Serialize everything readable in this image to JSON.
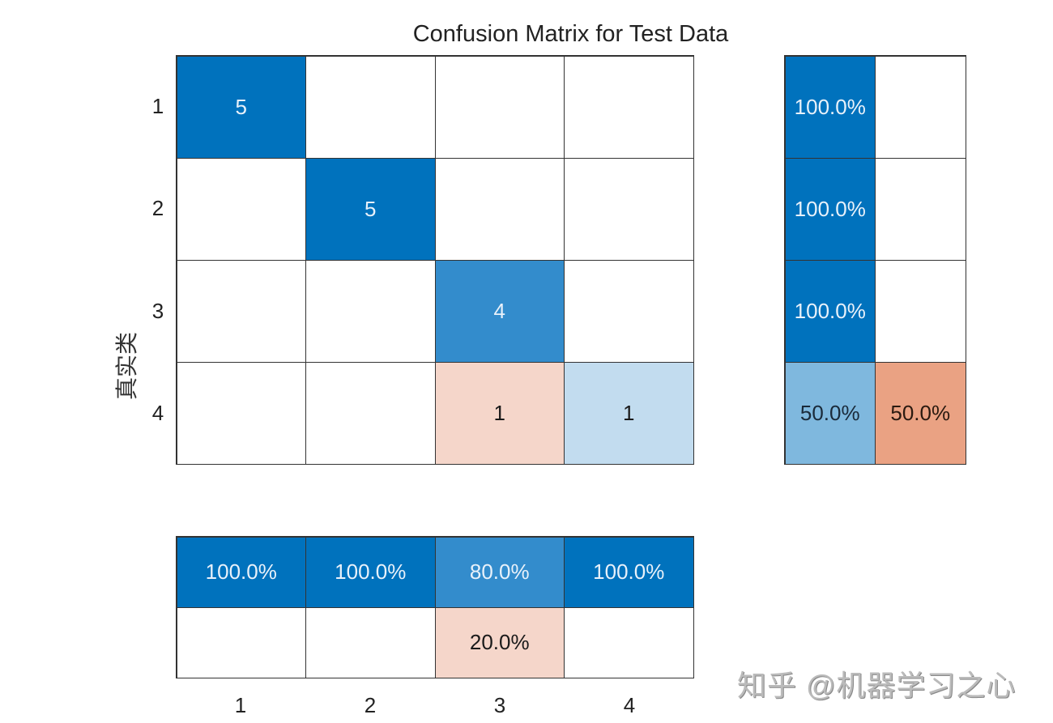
{
  "chart_data": {
    "type": "heatmap",
    "title": "Confusion Matrix for Test Data",
    "ylabel": "真实类",
    "xlabel": "",
    "row_labels": [
      "1",
      "2",
      "3",
      "4"
    ],
    "col_labels": [
      "1",
      "2",
      "3",
      "4"
    ],
    "matrix": [
      [
        5,
        0,
        0,
        0
      ],
      [
        0,
        5,
        0,
        0
      ],
      [
        0,
        0,
        4,
        0
      ],
      [
        0,
        0,
        1,
        1
      ]
    ],
    "row_summary": [
      [
        "100.0%",
        ""
      ],
      [
        "100.0%",
        ""
      ],
      [
        "100.0%",
        ""
      ],
      [
        "50.0%",
        "50.0%"
      ]
    ],
    "column_summary": [
      [
        "100.0%",
        "100.0%",
        "80.0%",
        "100.0%"
      ],
      [
        "",
        "",
        "20.0%",
        ""
      ]
    ]
  },
  "cells": {
    "main": [
      [
        {
          "t": "5",
          "bg": "#0072bd",
          "fg": "#e8f1fa"
        },
        {
          "t": "",
          "bg": "#ffffff",
          "fg": "#000"
        },
        {
          "t": "",
          "bg": "#ffffff",
          "fg": "#000"
        },
        {
          "t": "",
          "bg": "#ffffff",
          "fg": "#000"
        }
      ],
      [
        {
          "t": "",
          "bg": "#ffffff",
          "fg": "#000"
        },
        {
          "t": "5",
          "bg": "#0072bd",
          "fg": "#e8f1fa"
        },
        {
          "t": "",
          "bg": "#ffffff",
          "fg": "#000"
        },
        {
          "t": "",
          "bg": "#ffffff",
          "fg": "#000"
        }
      ],
      [
        {
          "t": "",
          "bg": "#ffffff",
          "fg": "#000"
        },
        {
          "t": "",
          "bg": "#ffffff",
          "fg": "#000"
        },
        {
          "t": "4",
          "bg": "#338ccc",
          "fg": "#e8f1fa"
        },
        {
          "t": "",
          "bg": "#ffffff",
          "fg": "#000"
        }
      ],
      [
        {
          "t": "",
          "bg": "#ffffff",
          "fg": "#000"
        },
        {
          "t": "",
          "bg": "#ffffff",
          "fg": "#000"
        },
        {
          "t": "1",
          "bg": "#f5d6ca",
          "fg": "#1a1a1a"
        },
        {
          "t": "1",
          "bg": "#c2dcef",
          "fg": "#1a1a1a"
        }
      ]
    ],
    "rsum": [
      [
        {
          "t": "100.0%",
          "bg": "#0072bd",
          "fg": "#e8f1fa"
        },
        {
          "t": "",
          "bg": "#ffffff",
          "fg": "#000"
        }
      ],
      [
        {
          "t": "100.0%",
          "bg": "#0072bd",
          "fg": "#e8f1fa"
        },
        {
          "t": "",
          "bg": "#ffffff",
          "fg": "#000"
        }
      ],
      [
        {
          "t": "100.0%",
          "bg": "#0072bd",
          "fg": "#e8f1fa"
        },
        {
          "t": "",
          "bg": "#ffffff",
          "fg": "#000"
        }
      ],
      [
        {
          "t": "50.0%",
          "bg": "#7fb8de",
          "fg": "#1a2a3a"
        },
        {
          "t": "50.0%",
          "bg": "#eaa283",
          "fg": "#2a1a10"
        }
      ]
    ],
    "bsum": [
      [
        {
          "t": "100.0%",
          "bg": "#0072bd",
          "fg": "#e8f1fa"
        },
        {
          "t": "100.0%",
          "bg": "#0072bd",
          "fg": "#e8f1fa"
        },
        {
          "t": "80.0%",
          "bg": "#338ccc",
          "fg": "#e8f1fa"
        },
        {
          "t": "100.0%",
          "bg": "#0072bd",
          "fg": "#e8f1fa"
        }
      ],
      [
        {
          "t": "",
          "bg": "#ffffff",
          "fg": "#000"
        },
        {
          "t": "",
          "bg": "#ffffff",
          "fg": "#000"
        },
        {
          "t": "20.0%",
          "bg": "#f5d6ca",
          "fg": "#1a1a1a"
        },
        {
          "t": "",
          "bg": "#ffffff",
          "fg": "#000"
        }
      ]
    ]
  },
  "watermark": "知乎 @机器学习之心"
}
